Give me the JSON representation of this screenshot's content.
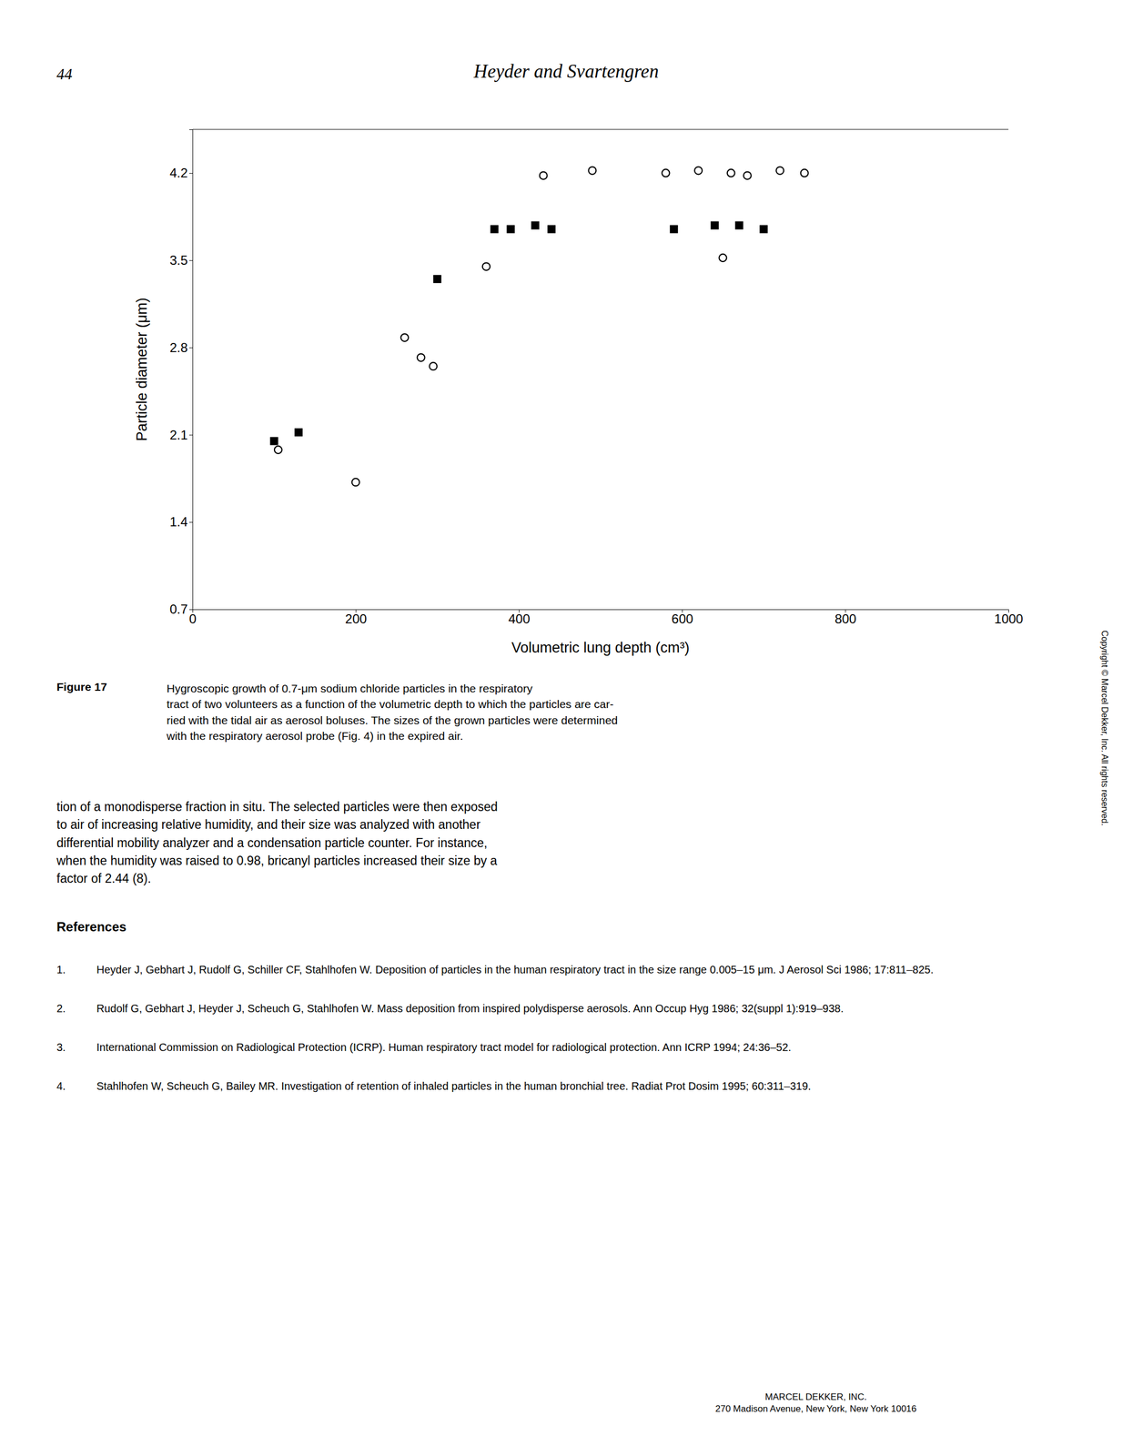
{
  "header": "Heyder and Svartengren",
  "page_number": "44",
  "chart_data": {
    "type": "scatter",
    "xlabel": "Volumetric lung depth (cm³)",
    "ylabel": "Particle diameter (μm)",
    "xlim": [
      0,
      1000
    ],
    "ylim": [
      0.7,
      4.55
    ],
    "xticks": [
      0,
      200,
      400,
      600,
      800,
      1000
    ],
    "yticks": [
      0.7,
      1.4,
      2.1,
      2.8,
      3.5,
      4.2
    ],
    "grid": false,
    "series": [
      {
        "marker": "square",
        "color": "black",
        "x": [
          100,
          130,
          300,
          370,
          390,
          420,
          440,
          590,
          640,
          670,
          700
        ],
        "values": [
          2.05,
          2.12,
          3.35,
          3.75,
          3.75,
          3.78,
          3.75,
          3.75,
          3.78,
          3.78,
          3.75
        ]
      },
      {
        "marker": "open-circle",
        "color": "black",
        "x": [
          105,
          200,
          260,
          280,
          295,
          360,
          430,
          490,
          580,
          620,
          650,
          660,
          680,
          720,
          750
        ],
        "values": [
          1.98,
          1.72,
          2.88,
          2.72,
          2.65,
          3.45,
          4.18,
          4.22,
          4.2,
          4.22,
          3.52,
          4.2,
          4.18,
          4.22,
          4.2
        ]
      }
    ]
  },
  "figure_label": "Figure 17",
  "figure_caption": "Hygroscopic growth of 0.7-μm sodium chloride particles in the respiratory\ntract of two volunteers as a function of the volumetric depth to which the particles are car-\nried with the tidal air as aerosol boluses. The sizes of the grown particles were determined\nwith the respiratory aerosol probe (Fig. 4) in the expired air.",
  "body_text": "tion of a monodisperse fraction in situ. The selected particles were then exposed\nto air of increasing relative humidity, and their size was analyzed with another\ndifferential mobility analyzer and a condensation particle counter. For instance,\nwhen the humidity was raised to 0.98, bricanyl particles increased their size by a\nfactor of 2.44 (8).",
  "references_title": "References",
  "references": [
    {
      "label": "1.",
      "text": "Heyder J, Gebhart J, Rudolf G, Schiller CF, Stahlhofen W. Deposition of particles in the human respiratory tract in the size range 0.005–15 μm. J Aerosol Sci 1986; 17:811–825."
    },
    {
      "label": "2.",
      "text": "Rudolf G, Gebhart J, Heyder J, Scheuch G, Stahlhofen W. Mass deposition from inspired polydisperse aerosols. Ann Occup Hyg 1986; 32(suppl 1):919–938."
    },
    {
      "label": "3.",
      "text": "International Commission on Radiological Protection (ICRP). Human respiratory tract model for radiological protection. Ann ICRP 1994; 24:36–52."
    },
    {
      "label": "4.",
      "text": "Stahlhofen W, Scheuch G, Bailey MR. Investigation of retention of inhaled particles in the human bronchial tree. Radiat Prot Dosim 1995; 60:311–319."
    }
  ],
  "footer_text": "MARCEL DEKKER, INC.\n270 Madison Avenue, New York, New York 10016",
  "copyright_text": "Copyright © Marcel Dekker, Inc. All rights reserved."
}
